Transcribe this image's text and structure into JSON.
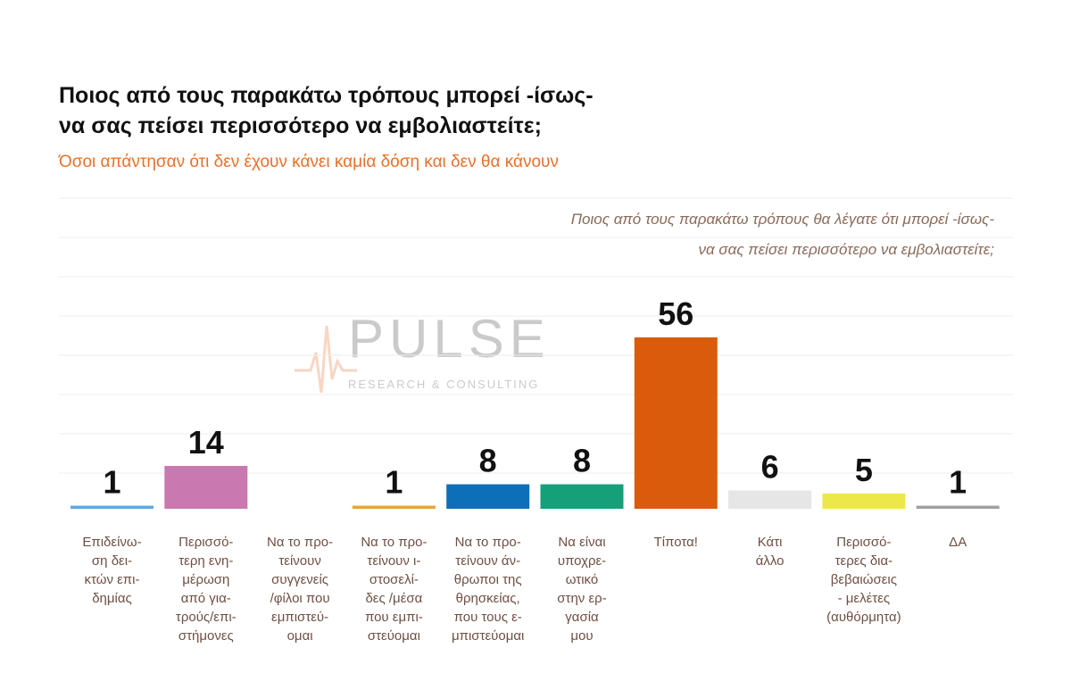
{
  "title_line1": "Ποιος από τους παρακάτω τρόπους μπορεί -ίσως-",
  "title_line2": "να σας πείσει περισσότερο να εμβολιαστείτε;",
  "subtitle": "Όσοι απάντησαν ότι δεν έχουν κάνει καμία δόση και δεν θα κάνουν",
  "question_line1": "Ποιος από τους παρακάτω τρόπους θα λέγατε ότι μπορεί -ίσως-",
  "question_line2": "να σας πείσει περισσότερο να εμβολιαστείτε;",
  "watermark": {
    "word": "PULSE",
    "sub": "RESEARCH & CONSULTING"
  },
  "chart_data": {
    "type": "bar",
    "categories": [
      "Επιδείνω-\nση δει-\nκτών επι-\nδημίας",
      "Περισσό-\nτερη ενη-\nμέρωση\nαπό για-\nτρούς/επι-\nστήμονες",
      "Να το προ-\nτείνουν\nσυγγενείς\n/φίλοι που\nεμπιστεύ-\nομαι",
      "Να το προ-\nτείνουν ι-\nστοσελί-\nδες /μέσα\nπου εμπι-\nστεύομαι",
      "Να το προ-\nτείνουν άν-\nθρωποι της\nθρησκείας,\nπου τους ε-\nμπιστεύομαι",
      "Να είναι\nυποχρε-\nωτικό\nστην ερ-\nγασία\nμου",
      "Τίποτα!",
      "Κάτι\nάλλο",
      "Περισσό-\nτερες δια-\nβεβαιώσεις\n- μελέτες\n(αυθόρμητα)",
      "ΔΑ"
    ],
    "values": [
      1,
      14,
      null,
      1,
      8,
      8,
      56,
      6,
      5,
      1
    ],
    "labels": [
      "1",
      "14",
      "",
      "1",
      "8",
      "8",
      "56",
      "6",
      "5",
      "1"
    ],
    "colors": [
      "#5aa9e6",
      "#c979b0",
      "#cccccc",
      "#e8a23a",
      "#0d6fb8",
      "#16a07a",
      "#d95b0b",
      "#e6e6e6",
      "#ece84a",
      "#a0a0a0"
    ],
    "ylim": [
      0,
      56
    ],
    "grid": true
  }
}
